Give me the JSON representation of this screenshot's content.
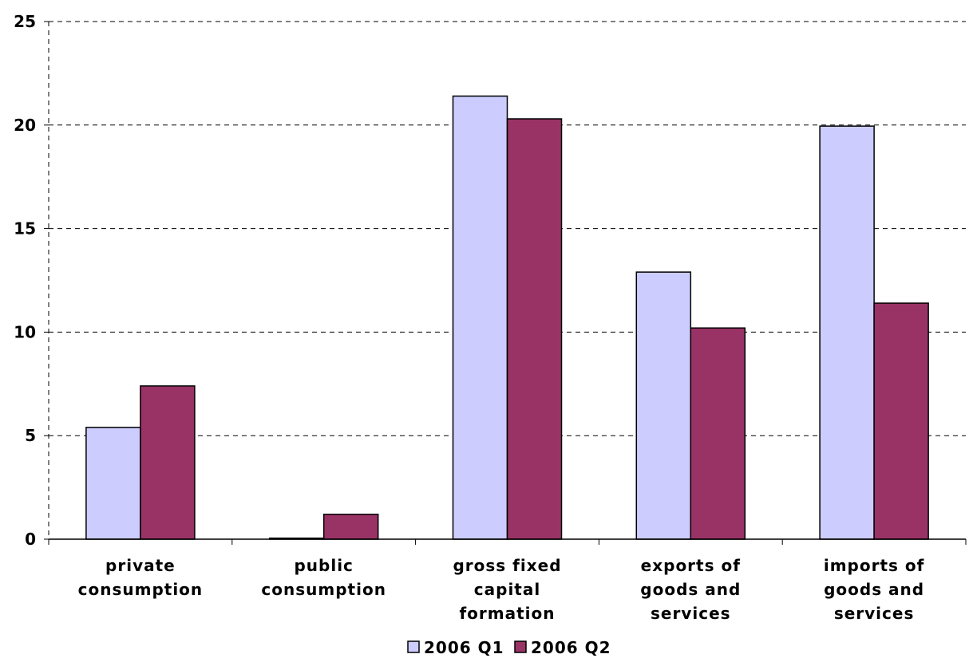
{
  "chart_data": {
    "type": "bar",
    "categories": [
      [
        "private",
        "consumption"
      ],
      [
        "public",
        "consumption"
      ],
      [
        "gross fixed",
        "capital",
        "formation"
      ],
      [
        "exports of",
        "goods and",
        "services"
      ],
      [
        "imports of",
        "goods and",
        "services"
      ]
    ],
    "series": [
      {
        "name": "2006 Q1",
        "values": [
          5.4,
          0.05,
          21.4,
          12.9,
          19.95
        ],
        "color": "#ccccff"
      },
      {
        "name": "2006 Q2",
        "values": [
          7.4,
          1.2,
          20.3,
          10.2,
          11.4
        ],
        "color": "#993366"
      }
    ],
    "title": "",
    "xlabel": "",
    "ylabel": "",
    "ylim": [
      0,
      25
    ],
    "yticks": [
      "0",
      "5",
      "10",
      "15",
      "20",
      "25"
    ],
    "grid": true,
    "legend_position": "bottom"
  }
}
